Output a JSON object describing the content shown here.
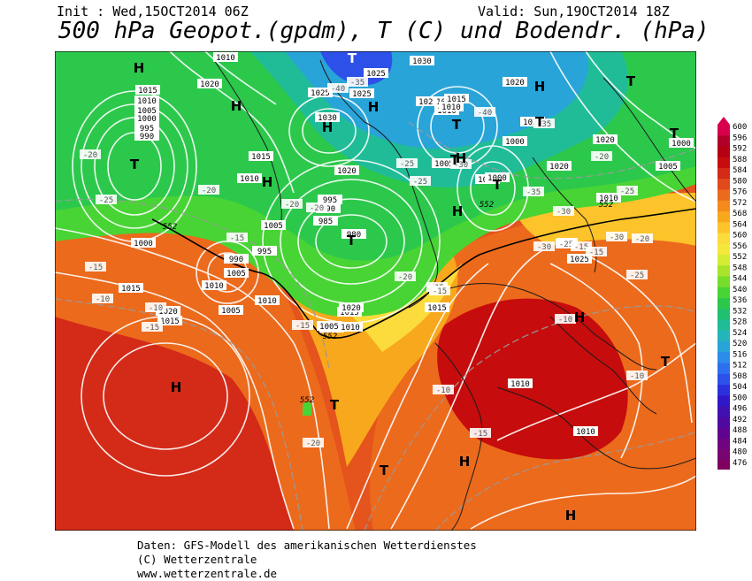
{
  "header": {
    "init": "Init : Wed,15OCT2014 06Z",
    "valid": "Valid: Sun,19OCT2014 18Z",
    "title": "500 hPa Geopot.(gpdm), T (C) und Bodendr. (hPa)"
  },
  "legend": {
    "values": [
      "600",
      "596",
      "592",
      "588",
      "584",
      "580",
      "576",
      "572",
      "568",
      "564",
      "560",
      "556",
      "552",
      "548",
      "544",
      "540",
      "536",
      "532",
      "528",
      "524",
      "520",
      "516",
      "512",
      "508",
      "504",
      "500",
      "496",
      "492",
      "488",
      "484",
      "480",
      "476"
    ],
    "colors": [
      "#d8004c",
      "#b0002a",
      "#b40012",
      "#c60c0c",
      "#d42a18",
      "#e04a1c",
      "#ec6a1c",
      "#f48a1c",
      "#f8a81c",
      "#fcc42a",
      "#fcdc3c",
      "#f4e83c",
      "#d4ec34",
      "#a8e42c",
      "#78dc2c",
      "#48d434",
      "#2cc84c",
      "#20c070",
      "#20bc98",
      "#24b4bc",
      "#28a4d8",
      "#2c8cec",
      "#2c70f0",
      "#2c50e8",
      "#2c30dc",
      "#3018c8",
      "#4010b0",
      "#5008a0",
      "#600490",
      "#700480",
      "#780470",
      "#800060"
    ]
  },
  "map_labels": {
    "pressure": [
      "1010",
      "1020",
      "1015",
      "1010",
      "1005",
      "1000",
      "995",
      "990",
      "1015",
      "1010",
      "1025",
      "1030",
      "1030",
      "1025",
      "1020",
      "1015",
      "1010",
      "1005",
      "1000",
      "1000",
      "995",
      "990",
      "985",
      "980",
      "1005",
      "1000",
      "995",
      "990",
      "1005",
      "1010",
      "1015",
      "1020",
      "1015",
      "1010",
      "1005",
      "1005",
      "1025",
      "1020",
      "1010",
      "1005",
      "1000",
      "1025",
      "1020",
      "1015",
      "1010",
      "1000",
      "1005",
      "1010",
      "1015",
      "1020",
      "1020",
      "1020",
      "1025",
      "1015",
      "1010",
      "1010"
    ],
    "temperature": [
      "-20",
      "-25",
      "-20",
      "-15",
      "-15",
      "-10",
      "-10",
      "-15",
      "-20",
      "-25",
      "-30",
      "-35",
      "-40",
      "-35",
      "-40",
      "-30",
      "-25",
      "-20",
      "-25",
      "-30",
      "-35",
      "-40",
      "-30",
      "-25",
      "-20",
      "-15",
      "-15",
      "-10",
      "-10",
      "-15",
      "-20",
      "-15",
      "-15",
      "-20",
      "-20",
      "-25",
      "-15",
      "-10"
    ],
    "geopot": [
      "552",
      "552",
      "552",
      "552",
      "552"
    ],
    "H": [
      "H",
      "H",
      "H",
      "H",
      "H",
      "H",
      "H",
      "H",
      "H",
      "H",
      "H",
      "H",
      "H",
      "H",
      "H",
      "H"
    ],
    "T": [
      "T",
      "T",
      "T",
      "T",
      "T",
      "T",
      "T",
      "T",
      "T",
      "T",
      "T",
      "T"
    ]
  },
  "footer": {
    "line1": "Daten: GFS-Modell des amerikanischen Wetterdienstes",
    "line2": "(C) Wetterzentrale",
    "line3": "www.wetterzentrale.de"
  }
}
